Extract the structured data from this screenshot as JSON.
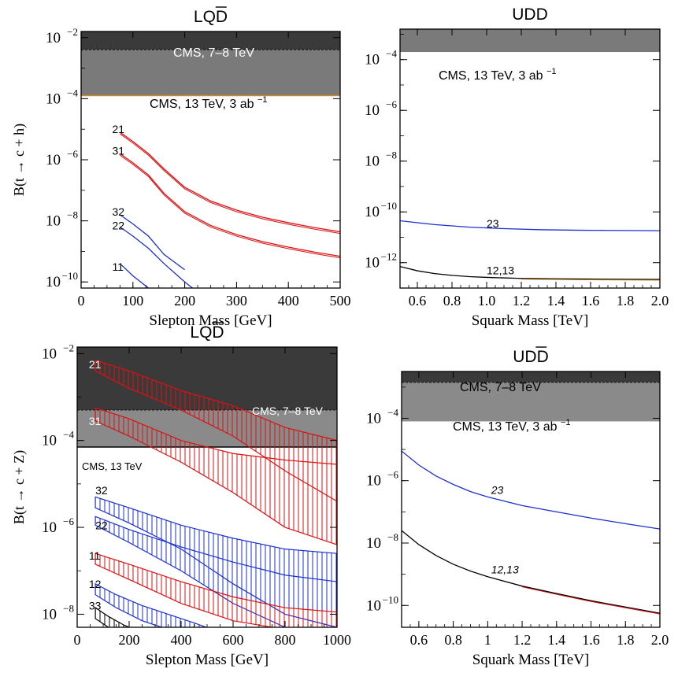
{
  "chart_data": [
    {
      "type": "line",
      "title": "LQD̅",
      "title_base": "LQD",
      "xlabel": "Slepton Mass [GeV]",
      "ylabel": "B(t → c + h)",
      "xlim": [
        0,
        500
      ],
      "ylim_exp": [
        -10.2,
        -1.8
      ],
      "yscale": "log",
      "x_ticks": [
        0,
        100,
        200,
        300,
        400,
        500
      ],
      "x_tick_labels": [
        "0",
        "100",
        "200",
        "300",
        "400",
        "500"
      ],
      "y_tick_exps": [
        -10,
        -8,
        -6,
        -4,
        -2
      ],
      "bands": [
        {
          "label": "",
          "y_exp": [
            -2.4,
            -1.8
          ],
          "color": "#3a3a3a",
          "edge": "#111111"
        },
        {
          "label": "CMS, 7–8 TeV",
          "y_exp": [
            -3.9,
            -2.4
          ],
          "color": "#7a7a7a",
          "edge": "#111111"
        }
      ],
      "limit_line": {
        "label": "CMS, 13 TeV, 3 ab",
        "sup": "−1",
        "y_exp": -3.9,
        "color": "#d08a2a"
      },
      "series": [
        {
          "name": "21",
          "color": "#dd1111",
          "band": false,
          "x": [
            75,
            100,
            130,
            160,
            200,
            250,
            300,
            350,
            400,
            450,
            500
          ],
          "y_exp": [
            -5.1,
            -5.4,
            -5.8,
            -6.3,
            -6.9,
            -7.35,
            -7.65,
            -7.88,
            -8.06,
            -8.22,
            -8.36
          ]
        },
        {
          "name": "31",
          "color": "#dd1111",
          "band": false,
          "x": [
            75,
            100,
            130,
            160,
            200,
            250,
            300,
            350,
            400,
            450,
            500
          ],
          "y_exp": [
            -5.8,
            -6.1,
            -6.5,
            -7.1,
            -7.7,
            -8.15,
            -8.45,
            -8.68,
            -8.86,
            -9.02,
            -9.16
          ]
        },
        {
          "name": "32",
          "color": "#1b2fd0",
          "band": false,
          "x": [
            75,
            100,
            130,
            160,
            200
          ],
          "y_exp": [
            -7.8,
            -8.1,
            -8.5,
            -9.1,
            -9.6
          ]
        },
        {
          "name": "22",
          "color": "#1b2fd0",
          "band": false,
          "x": [
            75,
            100,
            130,
            160,
            200,
            215
          ],
          "y_exp": [
            -8.2,
            -8.5,
            -8.9,
            -9.4,
            -10.0,
            -10.2
          ]
        },
        {
          "name": "11",
          "color": "#1b2fd0",
          "band": false,
          "x": [
            75,
            100,
            130,
            140
          ],
          "y_exp": [
            -9.4,
            -9.8,
            -10.2,
            -10.3
          ]
        }
      ],
      "series_labels": [
        {
          "text": "21",
          "x": 60,
          "y_exp": -5.0
        },
        {
          "text": "31",
          "x": 60,
          "y_exp": -5.7
        },
        {
          "text": "32",
          "x": 60,
          "y_exp": -7.7
        },
        {
          "text": "22",
          "x": 60,
          "y_exp": -8.15
        },
        {
          "text": "11",
          "x": 60,
          "y_exp": -9.5
        }
      ]
    },
    {
      "type": "line",
      "title": "UDD",
      "title_base": "UDD",
      "xlabel": "Squark Mass [TeV]",
      "ylabel": "",
      "xlim": [
        0.5,
        2.0
      ],
      "ylim_exp": [
        -13.0,
        -2.8
      ],
      "yscale": "log",
      "x_ticks": [
        0.6,
        0.8,
        1.0,
        1.2,
        1.4,
        1.6,
        1.8,
        2.0
      ],
      "x_tick_labels": [
        "0.6",
        "0.8",
        "1.0",
        "1.2",
        "1.4",
        "1.6",
        "1.8",
        "2.0"
      ],
      "y_tick_exps": [
        -12,
        -10,
        -8,
        -6,
        -4
      ],
      "bands": [
        {
          "label": "",
          "y_exp": [
            -3.7,
            -2.8
          ],
          "color": "#7a7a7a",
          "edge": "#111111"
        }
      ],
      "limit_line": {
        "label": "CMS, 13 TeV, 3 ab",
        "sup": "−1",
        "y_exp": null,
        "color": "#000000"
      },
      "series": [
        {
          "name": "23",
          "color": "#1b2fd0",
          "band": false,
          "x": [
            0.5,
            0.7,
            0.9,
            1.1,
            1.3,
            1.5,
            1.7,
            2.0
          ],
          "y_exp": [
            -10.35,
            -10.5,
            -10.6,
            -10.66,
            -10.7,
            -10.72,
            -10.73,
            -10.74
          ]
        },
        {
          "name": "12,13",
          "color": "#000000",
          "band": false,
          "x": [
            0.5,
            0.6,
            0.7,
            0.8,
            0.9,
            1.0,
            1.2,
            1.5,
            2.0
          ],
          "y_exp": [
            -12.15,
            -12.32,
            -12.43,
            -12.5,
            -12.55,
            -12.58,
            -12.62,
            -12.64,
            -12.66
          ]
        }
      ],
      "series_labels": [
        {
          "text": "23",
          "x": 1.0,
          "y_exp": -10.45
        },
        {
          "text": "12,13",
          "x": 1.0,
          "y_exp": -12.3
        }
      ]
    },
    {
      "type": "area",
      "title": "LQD̅",
      "title_base": "LQD",
      "xlabel": "Slepton Mass [GeV]",
      "ylabel": "B(t → c + Z)",
      "xlim": [
        0,
        1000
      ],
      "ylim_exp": [
        -8.3,
        -1.85
      ],
      "yscale": "log",
      "x_ticks": [
        0,
        200,
        400,
        600,
        800,
        1000
      ],
      "x_tick_labels": [
        "0",
        "200",
        "400",
        "600",
        "800",
        "1000"
      ],
      "y_tick_exps": [
        -8,
        -6,
        -4,
        -2
      ],
      "bands": [
        {
          "label": "CMS, 7–8 TeV",
          "y_exp": [
            -3.3,
            -1.85
          ],
          "color": "#3a3a3a",
          "edge": "#111111"
        },
        {
          "label": "",
          "y_exp": [
            -4.15,
            -3.3
          ],
          "color": "#8a8a8a",
          "edge": "#111111"
        }
      ],
      "limit_line": {
        "label": "CMS, 13 TeV",
        "sup": "",
        "y_exp": -4.15,
        "color": "#000000"
      },
      "series": [
        {
          "name": "21",
          "color": "#dd1111",
          "band": true,
          "x": [
            70,
            200,
            400,
            600,
            800,
            1000
          ],
          "y_hi": [
            -2.15,
            -2.4,
            -2.85,
            -3.2,
            -3.7,
            -4.0
          ],
          "y_lo": [
            -2.4,
            -2.8,
            -3.3,
            -3.9,
            -4.7,
            -5.4
          ]
        },
        {
          "name": "31",
          "color": "#dd1111",
          "band": true,
          "x": [
            70,
            200,
            400,
            600,
            800,
            1000
          ],
          "y_hi": [
            -3.25,
            -3.5,
            -4.0,
            -4.3,
            -4.45,
            -4.55
          ],
          "y_lo": [
            -3.55,
            -3.9,
            -4.5,
            -5.2,
            -6.0,
            -6.4
          ]
        },
        {
          "name": "32",
          "color": "#1b2fd0",
          "band": true,
          "x": [
            70,
            200,
            400,
            600,
            800,
            1000
          ],
          "y_hi": [
            -5.3,
            -5.55,
            -5.95,
            -6.25,
            -6.5,
            -6.6
          ],
          "y_lo": [
            -5.55,
            -5.9,
            -6.5,
            -7.3,
            -8.0,
            -8.3
          ]
        },
        {
          "name": "22",
          "color": "#1b2fd0",
          "band": true,
          "x": [
            70,
            200,
            400,
            600,
            800,
            1000
          ],
          "y_hi": [
            -5.75,
            -6.05,
            -6.45,
            -6.8,
            -7.1,
            -7.25
          ],
          "y_lo": [
            -5.95,
            -6.35,
            -7.0,
            -7.75,
            -8.3,
            -8.5
          ]
        },
        {
          "name": "11",
          "color": "#dd1111",
          "band": true,
          "x": [
            70,
            200,
            400,
            600,
            800,
            1000
          ],
          "y_hi": [
            -6.6,
            -6.85,
            -7.25,
            -7.6,
            -7.85,
            -7.95
          ],
          "y_lo": [
            -6.85,
            -7.2,
            -7.75,
            -8.15,
            -8.35,
            -8.45
          ]
        },
        {
          "name": "12",
          "color": "#1b2fd0",
          "band": true,
          "x": [
            70,
            150,
            250,
            350,
            450,
            520
          ],
          "y_hi": [
            -7.3,
            -7.55,
            -7.8,
            -8.0,
            -8.2,
            -8.35
          ],
          "y_lo": [
            -7.55,
            -7.85,
            -8.15,
            -8.35,
            -8.45,
            -8.5
          ]
        },
        {
          "name": "33",
          "color": "#000000",
          "band": true,
          "x": [
            70,
            120,
            180,
            220
          ],
          "y_hi": [
            -7.85,
            -8.05,
            -8.25,
            -8.35
          ],
          "y_lo": [
            -8.1,
            -8.3,
            -8.45,
            -8.5
          ]
        }
      ],
      "series_labels": [
        {
          "text": "21",
          "x": 45,
          "y_exp": -2.25
        },
        {
          "text": "31",
          "x": 45,
          "y_exp": -3.55
        },
        {
          "text": "32",
          "x": 70,
          "y_exp": -5.15
        },
        {
          "text": "22",
          "x": 70,
          "y_exp": -5.95
        },
        {
          "text": "11",
          "x": 45,
          "y_exp": -6.65
        },
        {
          "text": "12",
          "x": 45,
          "y_exp": -7.3
        },
        {
          "text": "33",
          "x": 45,
          "y_exp": -7.8
        }
      ]
    },
    {
      "type": "line",
      "title": "UDD̅",
      "title_base": "UDD",
      "xlabel": "Squark Mass [TeV]",
      "ylabel": "",
      "xlim": [
        0.5,
        2.0
      ],
      "ylim_exp": [
        -10.7,
        -2.5
      ],
      "yscale": "log",
      "x_ticks": [
        0.6,
        0.8,
        1.0,
        1.2,
        1.4,
        1.6,
        1.8,
        2.0
      ],
      "x_tick_labels": [
        "0.6",
        "0.8",
        "1",
        "1.2",
        "1.4",
        "1.6",
        "1.8",
        "2.0"
      ],
      "y_tick_exps": [
        -10,
        -8,
        -6,
        -4
      ],
      "bands": [
        {
          "label": "",
          "y_exp": [
            -2.85,
            -2.5
          ],
          "color": "#3a3a3a",
          "edge": "#111111"
        },
        {
          "label": "CMS, 7–8 TeV",
          "y_exp": [
            -4.1,
            -2.85
          ],
          "color": "#8a8a8a",
          "edge": "#111111"
        }
      ],
      "limit_line": {
        "label": "CMS, 13 TeV, 3 ab",
        "sup": "−1",
        "y_exp": null,
        "color": "#000000"
      },
      "series": [
        {
          "name": "23",
          "color": "#1b2fd0",
          "band": false,
          "x": [
            0.5,
            0.6,
            0.7,
            0.8,
            0.9,
            1.0,
            1.2,
            1.4,
            1.6,
            1.8,
            2.0
          ],
          "y_exp": [
            -5.05,
            -5.5,
            -5.85,
            -6.12,
            -6.35,
            -6.52,
            -6.8,
            -7.0,
            -7.2,
            -7.38,
            -7.55
          ]
        },
        {
          "name": "12,13",
          "color": "#000000",
          "band": false,
          "x": [
            0.5,
            0.6,
            0.7,
            0.8,
            0.9,
            1.0,
            1.2,
            1.4,
            1.6,
            1.8,
            2.0
          ],
          "y_exp": [
            -7.6,
            -8.05,
            -8.4,
            -8.68,
            -8.9,
            -9.08,
            -9.38,
            -9.62,
            -9.85,
            -10.05,
            -10.25
          ]
        }
      ],
      "series_labels": [
        {
          "text": "23",
          "x": 1.02,
          "y_exp": -6.3
        },
        {
          "text": "12,13",
          "x": 1.02,
          "y_exp": -8.85
        }
      ]
    }
  ]
}
